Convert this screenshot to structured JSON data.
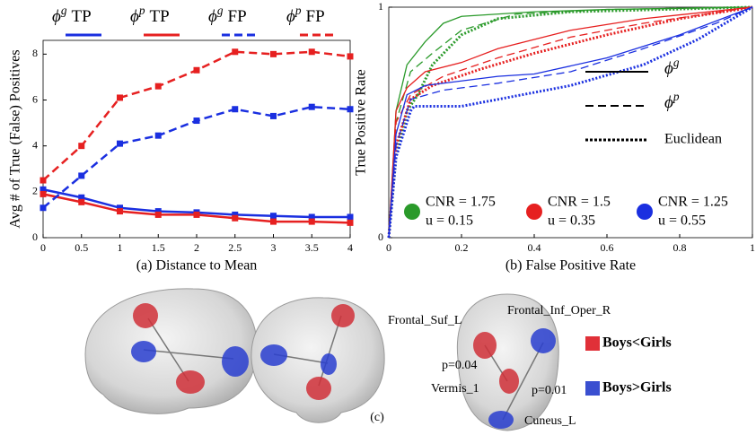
{
  "chart_data": [
    {
      "type": "line",
      "ylabel": "Avg # of True (False) Positives",
      "xlabel": "(a) Distance to Mean",
      "x": [
        0,
        0.5,
        1,
        1.5,
        2,
        2.5,
        3,
        3.5,
        4
      ],
      "xlim": [
        0,
        4
      ],
      "xticks": [
        0,
        0.5,
        1,
        1.5,
        2,
        2.5,
        3,
        3.5,
        4
      ],
      "ylim": [
        0,
        8.6
      ],
      "yticks": [
        0,
        2,
        4,
        6,
        8
      ],
      "series": [
        {
          "symbol": "ϕ",
          "sup": "g",
          "label": "TP",
          "color": "#1a2fe0",
          "style": "solid",
          "values": [
            2.1,
            1.75,
            1.3,
            1.15,
            1.1,
            1.0,
            0.95,
            0.9,
            0.9
          ]
        },
        {
          "symbol": "ϕ",
          "sup": "p",
          "label": "TP",
          "color": "#e62020",
          "style": "solid",
          "values": [
            1.9,
            1.55,
            1.15,
            1.0,
            1.0,
            0.85,
            0.7,
            0.7,
            0.65
          ]
        },
        {
          "symbol": "ϕ",
          "sup": "g",
          "label": "FP",
          "color": "#1a2fe0",
          "style": "dashed",
          "values": [
            1.3,
            2.7,
            4.1,
            4.45,
            5.1,
            5.6,
            5.3,
            5.7,
            5.6
          ]
        },
        {
          "symbol": "ϕ",
          "sup": "p",
          "label": "FP",
          "color": "#e62020",
          "style": "dashed",
          "values": [
            2.5,
            4.0,
            6.1,
            6.6,
            7.3,
            8.1,
            8.0,
            8.1,
            7.9
          ]
        }
      ]
    },
    {
      "type": "roc",
      "ylabel": "True Positive Rate",
      "xlabel": "(b) False Positive Rate",
      "xlim": [
        0,
        1
      ],
      "xticks": [
        0,
        0.2,
        0.4,
        0.6,
        0.8,
        1
      ],
      "ylim": [
        0,
        1
      ],
      "yticks": [
        0,
        1
      ],
      "line_styles": [
        {
          "style": "solid",
          "symbol": "ϕ",
          "sup": "g"
        },
        {
          "style": "dashed",
          "symbol": "ϕ",
          "sup": "p"
        },
        {
          "style": "dotted",
          "label": "Euclidean"
        }
      ],
      "groups": [
        {
          "color": "#2a9a2a",
          "cnr": "CNR = 1.75",
          "u": "u = 0.15",
          "curves": [
            {
              "style": "solid",
              "x": [
                0,
                0.02,
                0.05,
                0.1,
                0.15,
                0.2,
                0.4,
                0.6,
                1
              ],
              "y": [
                0,
                0.55,
                0.75,
                0.85,
                0.93,
                0.96,
                0.98,
                0.99,
                1
              ]
            },
            {
              "style": "dashed",
              "x": [
                0,
                0.02,
                0.06,
                0.12,
                0.2,
                0.35,
                0.6,
                1
              ],
              "y": [
                0,
                0.5,
                0.72,
                0.8,
                0.9,
                0.97,
                0.99,
                1
              ]
            },
            {
              "style": "dotted",
              "x": [
                0,
                0.02,
                0.05,
                0.08,
                0.12,
                0.2,
                0.3,
                0.5,
                1
              ],
              "y": [
                0,
                0.35,
                0.55,
                0.62,
                0.75,
                0.88,
                0.95,
                0.98,
                1
              ]
            }
          ]
        },
        {
          "color": "#e62020",
          "cnr": "CNR = 1.5",
          "u": "u = 0.35",
          "curves": [
            {
              "style": "solid",
              "x": [
                0,
                0.02,
                0.05,
                0.1,
                0.2,
                0.3,
                0.5,
                0.7,
                1
              ],
              "y": [
                0,
                0.55,
                0.65,
                0.72,
                0.76,
                0.82,
                0.9,
                0.95,
                1
              ]
            },
            {
              "style": "dashed",
              "x": [
                0,
                0.02,
                0.06,
                0.15,
                0.3,
                0.5,
                0.7,
                1
              ],
              "y": [
                0,
                0.5,
                0.62,
                0.7,
                0.78,
                0.87,
                0.93,
                1
              ]
            },
            {
              "style": "dotted",
              "x": [
                0,
                0.02,
                0.06,
                0.12,
                0.25,
                0.4,
                0.6,
                0.8,
                1
              ],
              "y": [
                0,
                0.4,
                0.6,
                0.66,
                0.73,
                0.8,
                0.88,
                0.95,
                1
              ]
            }
          ]
        },
        {
          "color": "#1a2fe0",
          "cnr": "CNR = 1.25",
          "u": "u = 0.55",
          "curves": [
            {
              "style": "solid",
              "x": [
                0,
                0.02,
                0.05,
                0.1,
                0.3,
                0.4,
                0.6,
                0.8,
                1
              ],
              "y": [
                0,
                0.45,
                0.62,
                0.66,
                0.7,
                0.71,
                0.78,
                0.88,
                1
              ]
            },
            {
              "style": "dashed",
              "x": [
                0,
                0.02,
                0.06,
                0.15,
                0.3,
                0.5,
                0.7,
                0.9,
                1
              ],
              "y": [
                0,
                0.4,
                0.6,
                0.64,
                0.67,
                0.72,
                0.82,
                0.93,
                1
              ]
            },
            {
              "style": "dotted",
              "x": [
                0,
                0.02,
                0.06,
                0.07,
                0.2,
                0.3,
                0.5,
                0.7,
                0.85,
                1
              ],
              "y": [
                0,
                0.35,
                0.55,
                0.57,
                0.57,
                0.6,
                0.66,
                0.75,
                0.86,
                1
              ]
            }
          ]
        }
      ]
    }
  ],
  "panel_c": {
    "label": "(c)",
    "regions": [
      "Frontal_Suf_L",
      "Frontal_Inf_Oper_R",
      "p=0.04",
      "Vermis_1",
      "p=0.01",
      "Cuneus_L"
    ],
    "legend": [
      {
        "label": "Boys<Girls",
        "color": "#e03038"
      },
      {
        "label": "Boys>Girls",
        "color": "#3a4fd0"
      }
    ]
  }
}
